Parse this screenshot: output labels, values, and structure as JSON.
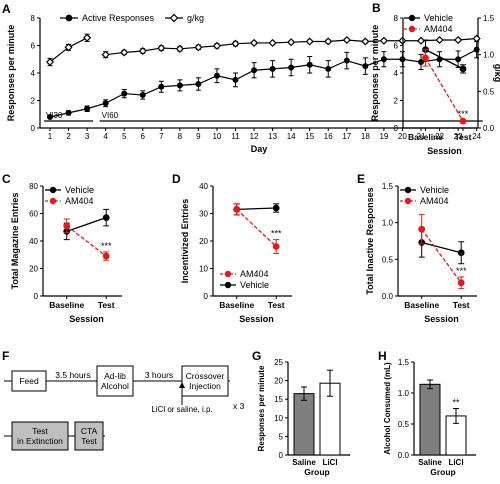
{
  "colors": {
    "black": "#000000",
    "red": "#e31a1c",
    "gray_bar": "#7f7f7f",
    "white": "#ffffff",
    "box_gray": "#bfbfbf"
  },
  "chart_data": [
    {
      "panel": "A",
      "type": "line",
      "xlabel": "Day",
      "ylabel_left": "Responses per minute",
      "ylabel_right": "g/kg",
      "x_ticks": [
        "1",
        "2",
        "3",
        "4",
        "5",
        "6",
        "7",
        "8",
        "9",
        "10",
        "11",
        "12",
        "13",
        "14",
        "15",
        "16",
        "17",
        "18",
        "19",
        "20",
        "21",
        "22",
        "23",
        "24"
      ],
      "ylim_left": [
        0,
        8
      ],
      "yticks_left": [
        "0",
        "2",
        "4",
        "6",
        "8"
      ],
      "ylim_right": [
        0,
        1.5
      ],
      "yticks_right": [
        "0.0",
        "0.5",
        "1.0",
        "1.5"
      ],
      "phase_labels": [
        "VI30",
        "VI60"
      ],
      "legend": [
        "Active Responses",
        "g/kg"
      ],
      "series": [
        {
          "name": "Active Responses",
          "axis": "left",
          "x": [
            1,
            2,
            3,
            4,
            5,
            6,
            7,
            8,
            9,
            10,
            11,
            12,
            13,
            14,
            15,
            16,
            17,
            18,
            19,
            20,
            21,
            22,
            23,
            24
          ],
          "values": [
            0.8,
            1.1,
            1.4,
            1.8,
            2.5,
            2.4,
            3.0,
            3.1,
            3.2,
            3.8,
            3.5,
            4.2,
            4.3,
            4.4,
            4.6,
            4.3,
            4.9,
            4.5,
            5.0,
            5.0,
            4.8,
            5.0,
            5.0,
            5.7
          ],
          "err": [
            0.1,
            0.15,
            0.2,
            0.25,
            0.3,
            0.3,
            0.4,
            0.4,
            0.45,
            0.5,
            0.5,
            0.55,
            0.6,
            0.6,
            0.6,
            0.6,
            0.6,
            0.6,
            0.55,
            0.55,
            0.55,
            0.55,
            0.6,
            0.6
          ]
        },
        {
          "name": "g/kg",
          "axis": "right",
          "x": [
            1,
            2,
            3,
            4,
            5,
            6,
            7,
            8,
            9,
            10,
            11,
            12,
            13,
            14,
            15,
            16,
            17,
            18,
            19,
            20,
            21,
            22,
            23,
            24
          ],
          "values": [
            0.9,
            1.1,
            1.23,
            1.0,
            1.03,
            1.05,
            1.09,
            1.08,
            1.1,
            1.12,
            1.15,
            1.16,
            1.16,
            1.17,
            1.18,
            1.18,
            1.2,
            1.18,
            1.19,
            1.19,
            1.19,
            1.2,
            1.2,
            1.22
          ],
          "err": [
            0.05,
            0.04,
            0.05,
            0.04,
            0.03,
            0.03,
            0.03,
            0.03,
            0.03,
            0.03,
            0.03,
            0.02,
            0.02,
            0.02,
            0.02,
            0.02,
            0.02,
            0.02,
            0.02,
            0.02,
            0.02,
            0.02,
            0.02,
            0.02
          ],
          "segments": [
            [
              0,
              3
            ],
            [
              3,
              24
            ]
          ]
        }
      ]
    },
    {
      "panel": "B",
      "type": "line",
      "xlabel": "Session",
      "ylabel": "Responses per minute",
      "categories": [
        "Baseline",
        "Test"
      ],
      "ylim": [
        0,
        8
      ],
      "yticks": [
        "0",
        "2",
        "4",
        "6",
        "8"
      ],
      "legend": [
        "Vehicle",
        "AM404"
      ],
      "series": [
        {
          "name": "Vehicle",
          "values": [
            5.7,
            4.3
          ],
          "err": [
            0.7,
            0.3
          ]
        },
        {
          "name": "AM404",
          "values": [
            5.1,
            0.5
          ],
          "err": [
            0.6,
            0.1
          ]
        }
      ],
      "significance": "***"
    },
    {
      "panel": "C",
      "type": "line",
      "xlabel": "Session",
      "ylabel": "Total Magazine Entries",
      "categories": [
        "Baseline",
        "Test"
      ],
      "ylim": [
        0,
        80
      ],
      "yticks": [
        "0",
        "20",
        "40",
        "60",
        "80"
      ],
      "legend": [
        "Vehicle",
        "AM404"
      ],
      "series": [
        {
          "name": "Vehicle",
          "values": [
            47,
            57
          ],
          "err": [
            6,
            6
          ]
        },
        {
          "name": "AM404",
          "values": [
            51,
            29
          ],
          "err": [
            5,
            3
          ]
        }
      ],
      "significance": "***"
    },
    {
      "panel": "D",
      "type": "line",
      "xlabel": "Session",
      "ylabel": "Incentivized Entries",
      "categories": [
        "Baseline",
        "Test"
      ],
      "ylim": [
        0,
        40
      ],
      "yticks": [
        "0",
        "10",
        "20",
        "30",
        "40"
      ],
      "legend": [
        "AM404",
        "Vehicle"
      ],
      "series": [
        {
          "name": "Vehicle",
          "values": [
            31.5,
            32.0
          ],
          "err": [
            2.0,
            1.5
          ]
        },
        {
          "name": "AM404",
          "values": [
            31.5,
            18.0
          ],
          "err": [
            2.0,
            2.5
          ]
        }
      ],
      "significance": "***"
    },
    {
      "panel": "E",
      "type": "line",
      "xlabel": "Session",
      "ylabel": "Total Inactive Responses",
      "categories": [
        "Baseline",
        "Test"
      ],
      "ylim": [
        0,
        1.5
      ],
      "yticks": [
        "0.0",
        "0.5",
        "1.0",
        "1.5"
      ],
      "legend": [
        "Vehicle",
        "AM404"
      ],
      "series": [
        {
          "name": "Vehicle",
          "values": [
            0.73,
            0.59
          ],
          "err": [
            0.2,
            0.15
          ]
        },
        {
          "name": "AM404",
          "values": [
            0.91,
            0.18
          ],
          "err": [
            0.2,
            0.08
          ]
        }
      ],
      "significance": "***"
    },
    {
      "panel": "G",
      "type": "bar",
      "xlabel": "Group",
      "ylabel": "Responses per minute",
      "categories": [
        "Saline",
        "LiCl"
      ],
      "values": [
        16.5,
        19.3
      ],
      "err": [
        1.8,
        3.5
      ],
      "ylim": [
        0,
        25
      ],
      "yticks": [
        "0",
        "5",
        "10",
        "15",
        "20",
        "25"
      ]
    },
    {
      "panel": "H",
      "type": "bar",
      "xlabel": "Group",
      "ylabel": "Alcohol Consumed (mL)",
      "categories": [
        "Saline",
        "LiCl"
      ],
      "values": [
        1.14,
        0.63
      ],
      "err": [
        0.07,
        0.12
      ],
      "ylim": [
        0,
        1.5
      ],
      "yticks": [
        "0.0",
        "0.5",
        "1.0",
        "1.5"
      ],
      "significance": "**"
    }
  ],
  "panel_F": {
    "row1": [
      "Feed",
      "3.5 hours",
      "Ad-lib\nAlcohol",
      "3 hours",
      "Crossover\nInjection"
    ],
    "arrow_label": "LiCl or saline, i.p.",
    "repeat": "x 3",
    "row2": [
      "Test\nin Extinction",
      "CTA\nTest"
    ]
  },
  "panel_letters": [
    "A",
    "B",
    "C",
    "D",
    "E",
    "F",
    "G",
    "H"
  ]
}
